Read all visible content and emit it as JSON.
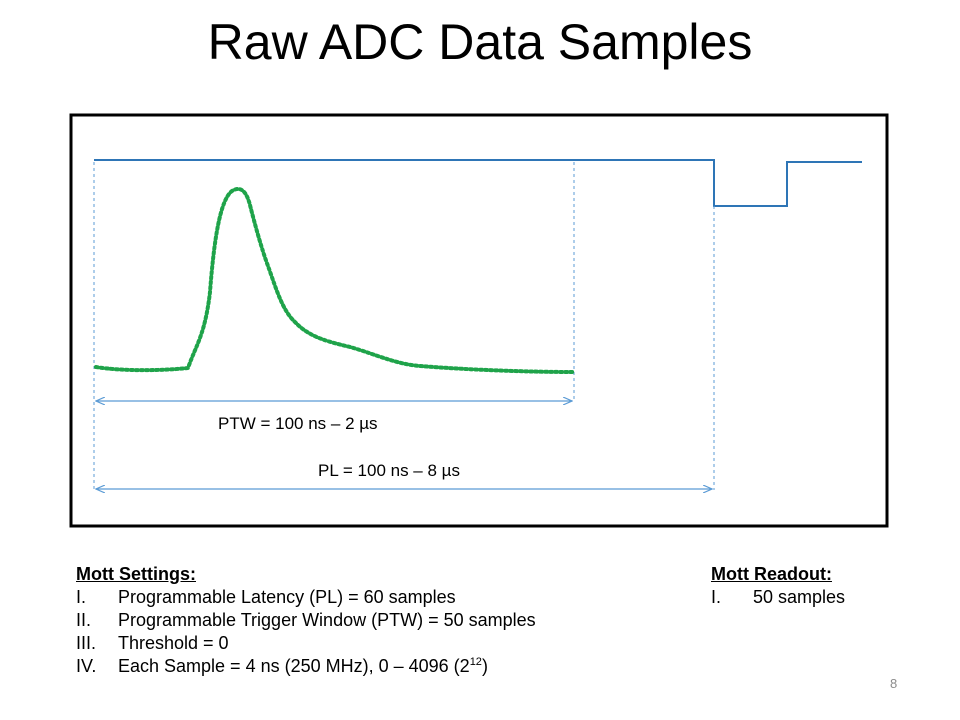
{
  "title": "Raw ADC Data Samples",
  "diagram": {
    "ptw_label": "PTW = 100 ns – 2 µs",
    "pl_label": "PL = 100 ns – 8 µs",
    "colors": {
      "signal": "#2e75b6",
      "pulse": "#1fa34a",
      "guide": "#5b9bd5",
      "frame": "#000000"
    }
  },
  "settings": {
    "heading": "Mott Settings:",
    "items": [
      {
        "num": "I.",
        "text": "Programmable Latency (PL) = 60 samples"
      },
      {
        "num": "II.",
        "text": "Programmable Trigger Window (PTW) = 50 samples"
      },
      {
        "num": "III.",
        "text": "Threshold = 0"
      },
      {
        "num": "IV.",
        "text": "Each Sample = 4 ns (250 MHz), 0 – 4096 (2",
        "sup": "12",
        "tail": ")"
      }
    ]
  },
  "readout": {
    "heading": "Mott Readout:",
    "items": [
      {
        "num": "I.",
        "text": "50 samples"
      }
    ]
  },
  "slide_number": "8"
}
